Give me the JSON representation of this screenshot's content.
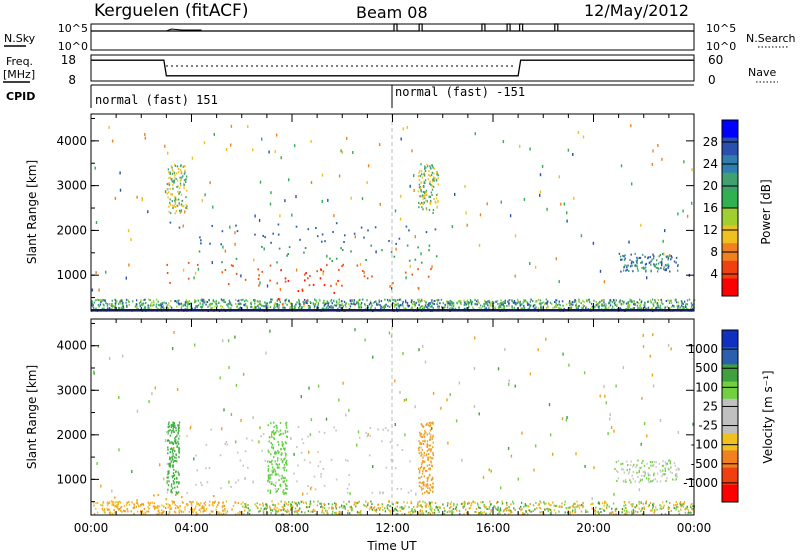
{
  "header": {
    "station": "Kerguelen (fitACF)",
    "beam": "Beam 08",
    "date": "12/May/2012"
  },
  "strips": {
    "nsky": {
      "label": "N.Sky",
      "top_tick": "10^5",
      "bottom_tick": "10^0",
      "right_label": "N.Search",
      "right_top_tick": "10^5",
      "right_bottom_tick": "10^0",
      "spikes_hours": [
        12.1,
        13.1,
        15.6,
        16.6,
        17.1,
        18.5
      ]
    },
    "freq": {
      "label_line1": "Freq.",
      "label_line2": "[MHz]",
      "top_tick": "18",
      "bottom_tick": "8",
      "right_label": "Nave",
      "right_top_tick": "60",
      "right_bottom_tick": "0",
      "steps": [
        {
          "hour": 0.0,
          "level": 0.8
        },
        {
          "hour": 2.9,
          "level": 0.8
        },
        {
          "hour": 3.0,
          "level": 0.2
        },
        {
          "hour": 17.0,
          "level": 0.2
        },
        {
          "hour": 17.1,
          "level": 0.8
        },
        {
          "hour": 24.0,
          "level": 0.8
        }
      ]
    },
    "cpid": {
      "label": "CPID",
      "segments": [
        {
          "start": 0.0,
          "text": "normal (fast) 151"
        },
        {
          "start": 12.0,
          "text": "normal (fast) -151"
        }
      ]
    }
  },
  "chart_data": [
    {
      "type": "heatmap",
      "name": "power",
      "ylabel": "Slant Range [km]",
      "yticks": [
        "1000",
        "2000",
        "3000",
        "4000"
      ],
      "ylim": [
        200,
        4600
      ],
      "xlim": [
        0,
        24
      ],
      "colorbar_label": "Power [dB]",
      "colorbar_ticks": [
        "4",
        "8",
        "12",
        "16",
        "20",
        "24",
        "28"
      ],
      "colorbar_colors": [
        "#0000ff",
        "#2a4fae",
        "#2e7fb0",
        "#40a070",
        "#30b050",
        "#a0d030",
        "#f0c020",
        "#f08020",
        "#f04010",
        "#ff0000"
      ],
      "regions": [
        {
          "h0": 3.0,
          "h1": 14.0,
          "r0": 700,
          "r1": 1300,
          "color": "#f05010"
        },
        {
          "h0": 7.0,
          "h1": 10.5,
          "r0": 300,
          "r1": 1200,
          "color": "#ff1000"
        },
        {
          "h0": 3.0,
          "h1": 14.0,
          "r0": 1300,
          "r1": 1700,
          "color": "#30a050"
        },
        {
          "h0": 3.0,
          "h1": 14.0,
          "r0": 1700,
          "r1": 2200,
          "color": "#2a5fae"
        }
      ]
    },
    {
      "type": "heatmap",
      "name": "velocity",
      "ylabel": "Slant Range [km]",
      "yticks": [
        "1000",
        "2000",
        "3000",
        "4000"
      ],
      "ylim": [
        200,
        4600
      ],
      "xlim": [
        0,
        24
      ],
      "xlabel": "Time UT",
      "xticks": [
        "00:00",
        "04:00",
        "08:00",
        "12:00",
        "16:00",
        "20:00",
        "00:00"
      ],
      "colorbar_label": "Velocity [m s⁻¹]",
      "colorbar_ticks": [
        "1000",
        "500",
        "100",
        "25",
        "-25",
        "-100",
        "-500",
        "-1000"
      ],
      "colorbar_colors": [
        "#1030c0",
        "#2a5fae",
        "#40a040",
        "#70d040",
        "#c0c0c0",
        "#c0c0c0",
        "#f0c020",
        "#f08020",
        "#f04010",
        "#ff0000"
      ],
      "regions": [
        {
          "h0": 3.0,
          "h1": 14.0,
          "r0": 700,
          "r1": 2200,
          "color": "#c8c8c8"
        },
        {
          "h0": 0.0,
          "h1": 5.0,
          "r0": 200,
          "r1": 700,
          "color": "#f0a020"
        }
      ]
    }
  ]
}
